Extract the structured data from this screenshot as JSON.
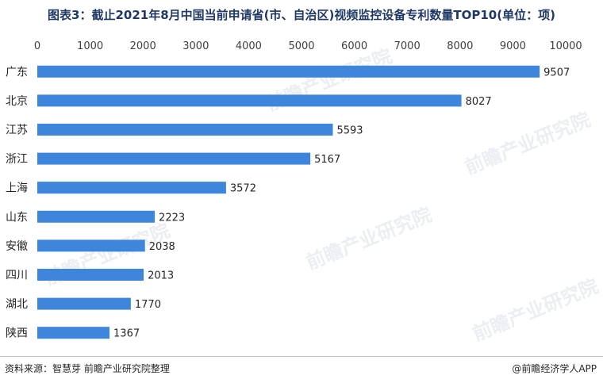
{
  "title": "图表3：截止2021年8月中国当前申请省(市、自治区)视频监控设备专利数量TOP10(单位：项)",
  "watermark": "前瞻产业研究院",
  "footer": {
    "source": "资料来源：智慧芽 前瞻产业研究院整理",
    "brand": "@前瞻经济学人APP"
  },
  "chart_data": {
    "type": "bar",
    "orientation": "horizontal",
    "title": "图表3：截止2021年8月中国当前申请省(市、自治区)视频监控设备专利数量TOP10(单位：项)",
    "categories": [
      "广东",
      "北京",
      "江苏",
      "浙江",
      "上海",
      "山东",
      "安徽",
      "四川",
      "湖北",
      "陕西"
    ],
    "values": [
      9507,
      8027,
      5593,
      5167,
      3572,
      2223,
      2038,
      2013,
      1770,
      1367
    ],
    "xticks": [
      0,
      1000,
      2000,
      3000,
      4000,
      5000,
      6000,
      7000,
      8000,
      9000,
      10000
    ],
    "xlim": [
      0,
      10000
    ],
    "axis_position": "top",
    "grid": false,
    "legend": "none",
    "bar_color": "#3d86dc"
  }
}
